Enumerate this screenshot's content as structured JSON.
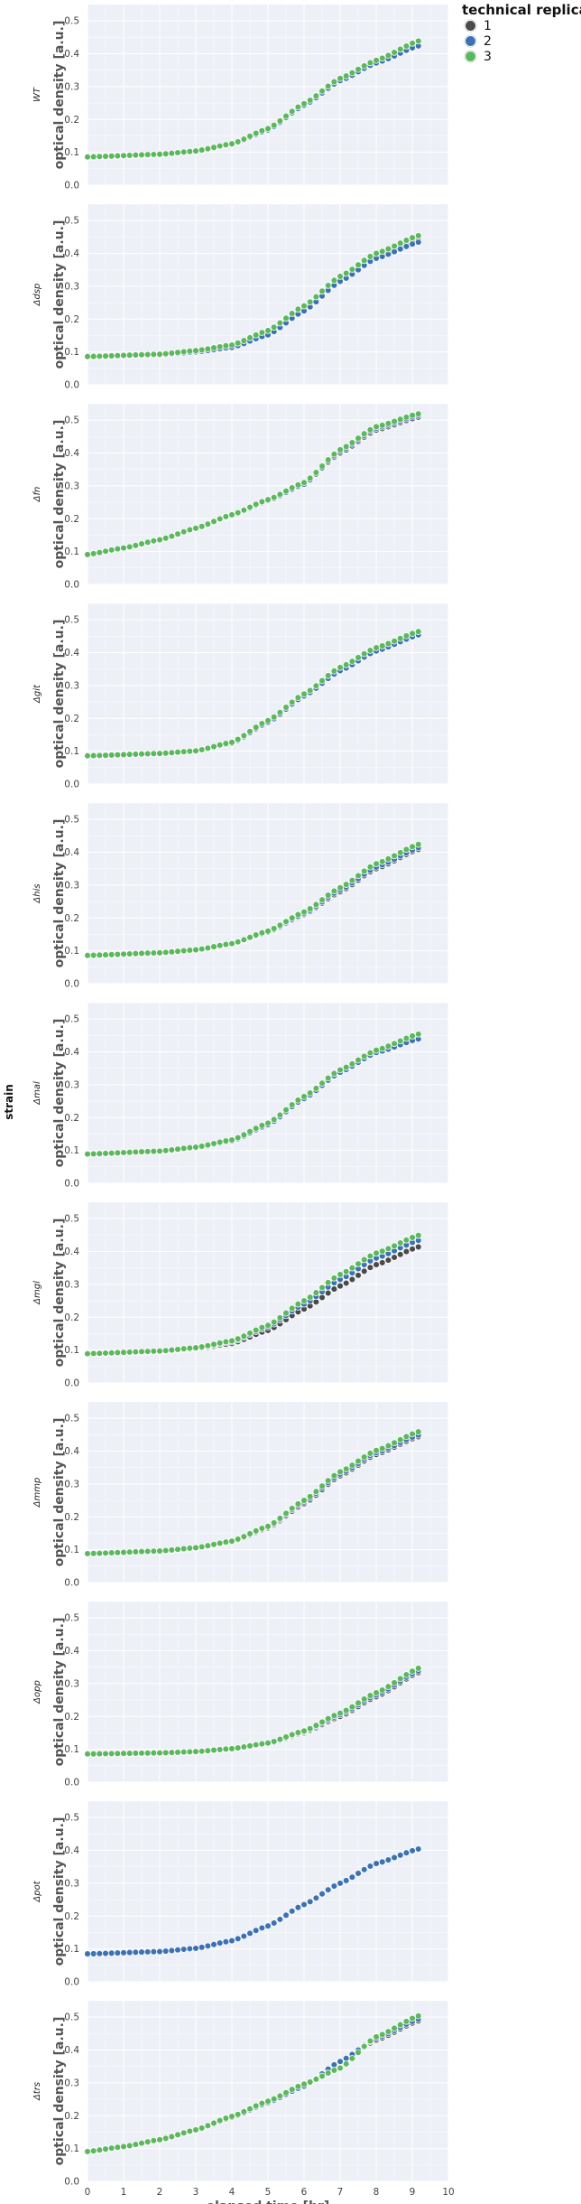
{
  "legend": {
    "title": "technical replicate",
    "items": [
      {
        "label": "1",
        "color": "#4a4a4a"
      },
      {
        "label": "2",
        "color": "#3c72b4"
      },
      {
        "label": "3",
        "color": "#5cb85c"
      }
    ]
  },
  "figure": {
    "row_label": "strain",
    "panel_background": "#edf0f6",
    "grid_color": "#ffffff"
  },
  "chart_data": [
    {
      "type": "scatter",
      "panel_label": "WT",
      "xlabel": "",
      "ylabel": "optical density [a.u.]",
      "xlim": [
        0,
        10
      ],
      "ylim": [
        0,
        0.55
      ],
      "yticks": [
        "0.0",
        "0.1",
        "0.2",
        "0.3",
        "0.4",
        "0.5"
      ],
      "x": [
        0,
        2,
        3,
        4,
        5,
        6,
        7,
        8,
        9.2
      ],
      "series": [
        {
          "name": "1",
          "values": [
            0.085,
            0.093,
            0.103,
            0.125,
            0.17,
            0.245,
            0.32,
            0.375,
            0.43
          ]
        },
        {
          "name": "2",
          "values": [
            0.085,
            0.093,
            0.103,
            0.124,
            0.168,
            0.243,
            0.318,
            0.372,
            0.425
          ]
        },
        {
          "name": "3",
          "values": [
            0.086,
            0.094,
            0.104,
            0.126,
            0.172,
            0.248,
            0.325,
            0.38,
            0.44
          ]
        }
      ]
    },
    {
      "type": "scatter",
      "panel_label": "Δdsp",
      "xlabel": "",
      "ylabel": "optical density [a.u.]",
      "xlim": [
        0,
        10
      ],
      "ylim": [
        0,
        0.55
      ],
      "yticks": [
        "0.0",
        "0.1",
        "0.2",
        "0.3",
        "0.4",
        "0.5"
      ],
      "x": [
        0,
        2,
        3,
        4,
        5,
        6,
        7,
        8,
        9.2
      ],
      "series": [
        {
          "name": "1",
          "values": [
            0.085,
            0.091,
            0.1,
            0.115,
            0.155,
            0.23,
            0.32,
            0.39,
            0.44
          ]
        },
        {
          "name": "2",
          "values": [
            0.085,
            0.091,
            0.1,
            0.114,
            0.152,
            0.225,
            0.315,
            0.385,
            0.435
          ]
        },
        {
          "name": "3",
          "values": [
            0.086,
            0.093,
            0.104,
            0.121,
            0.165,
            0.24,
            0.33,
            0.4,
            0.455
          ]
        }
      ]
    },
    {
      "type": "scatter",
      "panel_label": "Δfn",
      "xlabel": "",
      "ylabel": "optical density [a.u.]",
      "xlim": [
        0,
        10
      ],
      "ylim": [
        0,
        0.55
      ],
      "yticks": [
        "0.0",
        "0.1",
        "0.2",
        "0.3",
        "0.4",
        "0.5"
      ],
      "x": [
        0,
        1,
        2,
        3,
        4,
        5,
        6,
        7,
        8,
        9.2
      ],
      "series": [
        {
          "name": "1",
          "values": [
            0.09,
            0.11,
            0.135,
            0.17,
            0.21,
            0.255,
            0.305,
            0.4,
            0.47,
            0.51
          ]
        },
        {
          "name": "2",
          "values": [
            0.09,
            0.11,
            0.135,
            0.17,
            0.21,
            0.255,
            0.305,
            0.405,
            0.475,
            0.515
          ]
        },
        {
          "name": "3",
          "values": [
            0.091,
            0.111,
            0.136,
            0.171,
            0.212,
            0.258,
            0.31,
            0.41,
            0.48,
            0.52
          ]
        }
      ]
    },
    {
      "type": "scatter",
      "panel_label": "Δgit",
      "xlabel": "",
      "ylabel": "optical density [a.u.]",
      "xlim": [
        0,
        10
      ],
      "ylim": [
        0,
        0.55
      ],
      "yticks": [
        "0.0",
        "0.1",
        "0.2",
        "0.3",
        "0.4",
        "0.5"
      ],
      "x": [
        0,
        2,
        3,
        4,
        5,
        6,
        7,
        8,
        9.2
      ],
      "series": [
        {
          "name": "1",
          "values": [
            0.085,
            0.092,
            0.1,
            0.125,
            0.19,
            0.27,
            0.35,
            0.41,
            0.46
          ]
        },
        {
          "name": "2",
          "values": [
            0.085,
            0.092,
            0.1,
            0.124,
            0.188,
            0.268,
            0.345,
            0.405,
            0.455
          ]
        },
        {
          "name": "3",
          "values": [
            0.086,
            0.093,
            0.101,
            0.127,
            0.193,
            0.274,
            0.355,
            0.415,
            0.465
          ]
        }
      ]
    },
    {
      "type": "scatter",
      "panel_label": "Δhis",
      "xlabel": "",
      "ylabel": "optical density [a.u.]",
      "xlim": [
        0,
        10
      ],
      "ylim": [
        0,
        0.55
      ],
      "yticks": [
        "0.0",
        "0.1",
        "0.2",
        "0.3",
        "0.4",
        "0.5"
      ],
      "x": [
        0,
        2,
        3,
        4,
        5,
        6,
        7,
        8,
        9.2
      ],
      "series": [
        {
          "name": "1",
          "values": [
            0.085,
            0.093,
            0.102,
            0.12,
            0.155,
            0.21,
            0.28,
            0.35,
            0.41
          ]
        },
        {
          "name": "2",
          "values": [
            0.085,
            0.093,
            0.102,
            0.121,
            0.157,
            0.213,
            0.285,
            0.355,
            0.415
          ]
        },
        {
          "name": "3",
          "values": [
            0.086,
            0.094,
            0.103,
            0.122,
            0.16,
            0.218,
            0.292,
            0.365,
            0.425
          ]
        }
      ]
    },
    {
      "type": "scatter",
      "panel_label": "Δmal",
      "xlabel": "",
      "ylabel": "optical density [a.u.]",
      "xlim": [
        0,
        10
      ],
      "ylim": [
        0,
        0.55
      ],
      "yticks": [
        "0.0",
        "0.1",
        "0.2",
        "0.3",
        "0.4",
        "0.5"
      ],
      "x": [
        0,
        2,
        3,
        4,
        5,
        6,
        7,
        8,
        9.2
      ],
      "series": [
        {
          "name": "1",
          "values": [
            0.088,
            0.097,
            0.108,
            0.13,
            0.18,
            0.26,
            0.34,
            0.4,
            0.445
          ]
        },
        {
          "name": "2",
          "values": [
            0.088,
            0.097,
            0.108,
            0.129,
            0.178,
            0.258,
            0.338,
            0.398,
            0.44
          ]
        },
        {
          "name": "3",
          "values": [
            0.089,
            0.098,
            0.11,
            0.132,
            0.183,
            0.264,
            0.345,
            0.405,
            0.455
          ]
        }
      ]
    },
    {
      "type": "scatter",
      "panel_label": "Δmgl",
      "xlabel": "",
      "ylabel": "optical density [a.u.]",
      "xlim": [
        0,
        10
      ],
      "ylim": [
        0,
        0.55
      ],
      "yticks": [
        "0.0",
        "0.1",
        "0.2",
        "0.3",
        "0.4",
        "0.5"
      ],
      "x": [
        0,
        2,
        3,
        4,
        5,
        6,
        7,
        8,
        9.2
      ],
      "series": [
        {
          "name": "1",
          "values": [
            0.088,
            0.095,
            0.103,
            0.12,
            0.16,
            0.225,
            0.295,
            0.36,
            0.415
          ]
        },
        {
          "name": "2",
          "values": [
            0.088,
            0.096,
            0.105,
            0.125,
            0.17,
            0.24,
            0.315,
            0.38,
            0.435
          ]
        },
        {
          "name": "3",
          "values": [
            0.089,
            0.097,
            0.107,
            0.128,
            0.175,
            0.25,
            0.33,
            0.395,
            0.45
          ]
        }
      ]
    },
    {
      "type": "scatter",
      "panel_label": "Δmmp",
      "xlabel": "",
      "ylabel": "optical density [a.u.]",
      "xlim": [
        0,
        10
      ],
      "ylim": [
        0,
        0.55
      ],
      "yticks": [
        "0.0",
        "0.1",
        "0.2",
        "0.3",
        "0.4",
        "0.5"
      ],
      "x": [
        0,
        2,
        3,
        4,
        5,
        6,
        7,
        8,
        9.2
      ],
      "series": [
        {
          "name": "1",
          "values": [
            0.087,
            0.095,
            0.104,
            0.122,
            0.165,
            0.24,
            0.325,
            0.39,
            0.445
          ]
        },
        {
          "name": "2",
          "values": [
            0.087,
            0.095,
            0.105,
            0.124,
            0.168,
            0.245,
            0.33,
            0.395,
            0.45
          ]
        },
        {
          "name": "3",
          "values": [
            0.088,
            0.096,
            0.106,
            0.126,
            0.171,
            0.25,
            0.337,
            0.402,
            0.46
          ]
        }
      ]
    },
    {
      "type": "scatter",
      "panel_label": "Δopp",
      "xlabel": "",
      "ylabel": "optical density [a.u.]",
      "xlim": [
        0,
        10
      ],
      "ylim": [
        0,
        0.55
      ],
      "yticks": [
        "0.0",
        "0.1",
        "0.2",
        "0.3",
        "0.4",
        "0.5"
      ],
      "x": [
        0,
        2,
        3,
        4,
        5,
        6,
        7,
        8,
        9.2
      ],
      "series": [
        {
          "name": "1",
          "values": [
            0.085,
            0.088,
            0.092,
            0.1,
            0.115,
            0.15,
            0.2,
            0.26,
            0.335
          ]
        },
        {
          "name": "2",
          "values": [
            0.085,
            0.088,
            0.092,
            0.101,
            0.117,
            0.153,
            0.205,
            0.265,
            0.34
          ]
        },
        {
          "name": "3",
          "values": [
            0.086,
            0.089,
            0.093,
            0.102,
            0.119,
            0.156,
            0.21,
            0.272,
            0.348
          ]
        }
      ]
    },
    {
      "type": "scatter",
      "panel_label": "Δpot",
      "xlabel": "",
      "ylabel": "optical density [a.u.]",
      "xlim": [
        0,
        10
      ],
      "ylim": [
        0,
        0.55
      ],
      "yticks": [
        "0.0",
        "0.1",
        "0.2",
        "0.3",
        "0.4",
        "0.5"
      ],
      "x": [
        0,
        2,
        3,
        4,
        5,
        6,
        7,
        8,
        9.2
      ],
      "series": [
        {
          "name": "2",
          "values": [
            0.085,
            0.092,
            0.102,
            0.125,
            0.17,
            0.235,
            0.3,
            0.36,
            0.405
          ]
        }
      ]
    },
    {
      "type": "scatter",
      "panel_label": "Δtrs",
      "xlabel": "elapsed time [hr]",
      "ylabel": "optical density [a.u.]",
      "xlim": [
        0,
        10
      ],
      "ylim": [
        0,
        0.55
      ],
      "yticks": [
        "0.0",
        "0.1",
        "0.2",
        "0.3",
        "0.4",
        "0.5"
      ],
      "xticks": [
        "0",
        "1",
        "2",
        "3",
        "4",
        "5",
        "6",
        "7",
        "8",
        "9",
        "10"
      ],
      "x": [
        0,
        1,
        2,
        3,
        4,
        5,
        6,
        7,
        8,
        9.2
      ],
      "series": [
        {
          "name": "1",
          "values": [
            0.09,
            0.105,
            0.125,
            0.155,
            0.195,
            0.24,
            0.29,
            0.365,
            0.43,
            0.49
          ]
        },
        {
          "name": "2",
          "values": [
            0.09,
            0.105,
            0.125,
            0.155,
            0.195,
            0.24,
            0.29,
            0.365,
            0.435,
            0.495
          ]
        },
        {
          "name": "3",
          "values": [
            0.091,
            0.106,
            0.127,
            0.157,
            0.198,
            0.244,
            0.296,
            0.345,
            0.44,
            0.505
          ]
        }
      ]
    }
  ]
}
